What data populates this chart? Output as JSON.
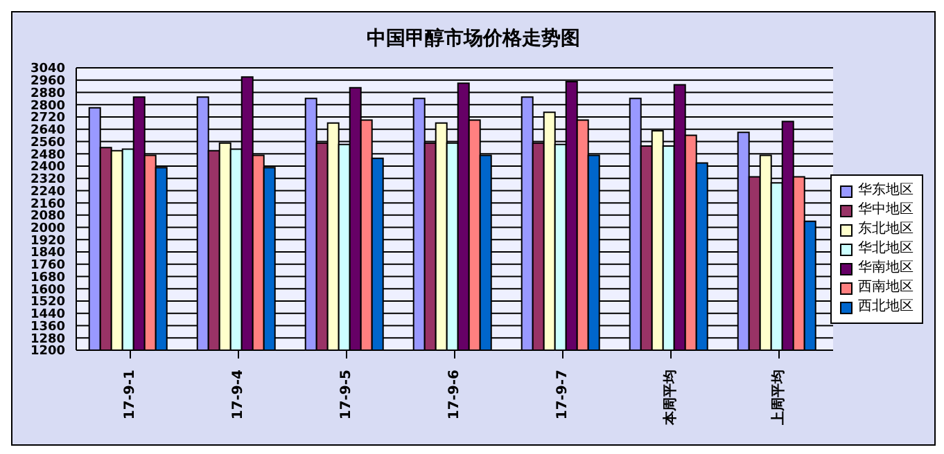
{
  "chart_data": {
    "type": "bar",
    "title": "中国甲醇市场价格走势图",
    "categories": [
      "17-9-1",
      "17-9-4",
      "17-9-5",
      "17-9-6",
      "17-9-7",
      "本周平均",
      "上周平均"
    ],
    "series": [
      {
        "name": "华东地区",
        "color": "#9999ff",
        "values": [
          2780,
          2850,
          2840,
          2840,
          2850,
          2840,
          2620
        ]
      },
      {
        "name": "华中地区",
        "color": "#993366",
        "values": [
          2520,
          2500,
          2550,
          2550,
          2550,
          2530,
          2330
        ]
      },
      {
        "name": "东北地区",
        "color": "#ffffcc",
        "values": [
          2500,
          2550,
          2680,
          2680,
          2750,
          2630,
          2470
        ]
      },
      {
        "name": "华北地区",
        "color": "#ccffff",
        "values": [
          2510,
          2510,
          2540,
          2550,
          2540,
          2530,
          2290
        ]
      },
      {
        "name": "华南地区",
        "color": "#660066",
        "values": [
          2850,
          2980,
          2910,
          2940,
          2950,
          2930,
          2690
        ]
      },
      {
        "name": "西南地区",
        "color": "#ff8080",
        "values": [
          2470,
          2470,
          2700,
          2700,
          2700,
          2600,
          2330
        ]
      },
      {
        "name": "西北地区",
        "color": "#0066cc",
        "values": [
          2390,
          2390,
          2450,
          2470,
          2470,
          2420,
          2040
        ]
      }
    ],
    "ylim": [
      1200,
      3040
    ],
    "yticks": [
      1200,
      1280,
      1360,
      1440,
      1520,
      1600,
      1680,
      1760,
      1840,
      1920,
      2000,
      2080,
      2160,
      2240,
      2320,
      2400,
      2480,
      2560,
      2640,
      2720,
      2800,
      2880,
      2960,
      3040
    ],
    "grid": "y",
    "legend": "right"
  }
}
